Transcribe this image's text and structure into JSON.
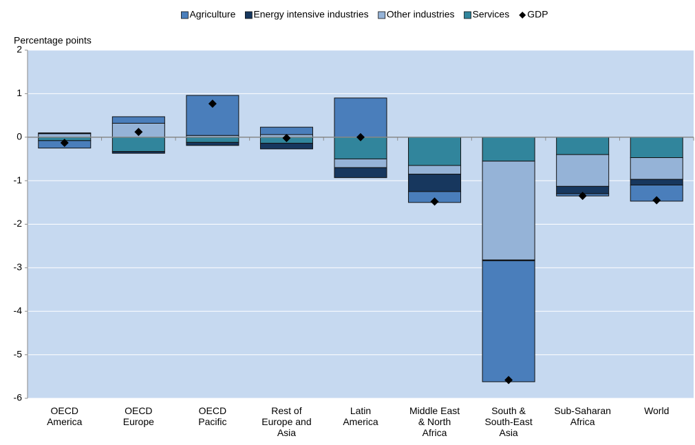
{
  "chart_data": {
    "type": "bar",
    "stacked": true,
    "y_label": "Percentage points",
    "categories": [
      "OECD America",
      "OECD Europe",
      "OECD Pacific",
      "Rest of Europe and Asia",
      "Latin America",
      "Middle East & North Africa",
      "South & South-East Asia",
      "Sub-Saharan Africa",
      "World"
    ],
    "series": [
      {
        "name": "Agriculture",
        "color": "#4a7ebb",
        "values": [
          -0.17,
          0.15,
          0.92,
          0.17,
          0.9,
          -0.25,
          -2.78,
          -0.05,
          -0.37
        ]
      },
      {
        "name": "Energy intensive industries",
        "color": "#17375e",
        "values": [
          0.02,
          -0.04,
          -0.07,
          -0.13,
          -0.23,
          -0.4,
          -0.02,
          -0.17,
          -0.13
        ]
      },
      {
        "name": "Other industries",
        "color": "#95b3d7",
        "values": [
          0.08,
          0.32,
          0.04,
          0.06,
          -0.2,
          -0.2,
          -2.27,
          -0.73,
          -0.5
        ]
      },
      {
        "name": "Services",
        "color": "#31859c",
        "values": [
          -0.08,
          -0.33,
          -0.12,
          -0.14,
          -0.5,
          -0.65,
          -0.55,
          -0.4,
          -0.47
        ]
      }
    ],
    "gdp": {
      "name": "GDP",
      "color": "#000000",
      "marker": "diamond",
      "values": [
        -0.13,
        0.12,
        0.77,
        -0.02,
        0.0,
        -1.48,
        -5.58,
        -1.35,
        -1.45
      ]
    },
    "ylim": [
      -6,
      2
    ],
    "yticks": [
      -6,
      -5,
      -4,
      -3,
      -2,
      -1,
      0,
      1,
      2
    ],
    "grid": true,
    "background": "#c6d9f0",
    "legend": "top"
  }
}
